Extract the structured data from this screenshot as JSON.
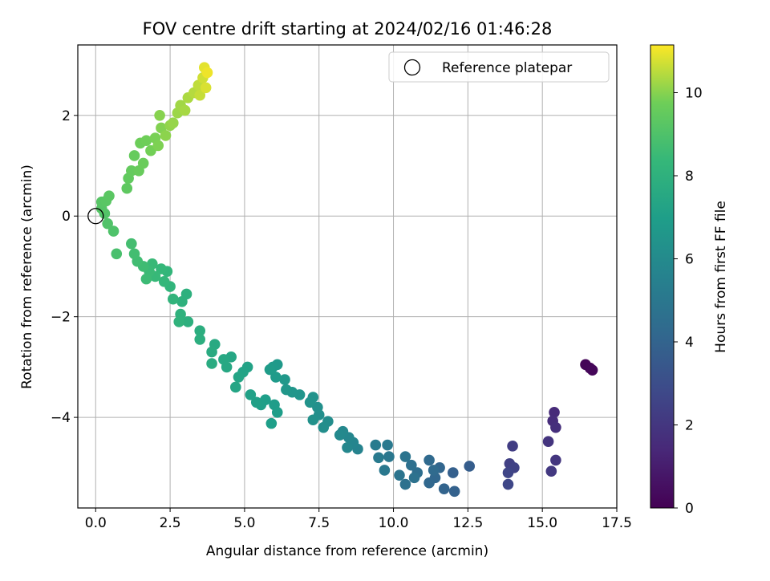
{
  "chart_data": {
    "type": "scatter",
    "title": "FOV centre drift starting at 2024/02/16 01:46:28",
    "xlabel": "Angular distance from reference (arcmin)",
    "ylabel": "Rotation from reference (arcmin)",
    "xlim": [
      -0.6,
      17.5
    ],
    "ylim": [
      -5.8,
      3.4
    ],
    "xticks": [
      0.0,
      2.5,
      5.0,
      7.5,
      10.0,
      12.5,
      15.0,
      17.5
    ],
    "xtick_labels": [
      "0.0",
      "2.5",
      "5.0",
      "7.5",
      "10.0",
      "12.5",
      "15.0",
      "17.5"
    ],
    "yticks": [
      -4,
      -2,
      0,
      2
    ],
    "ytick_labels": [
      "−4",
      "−2",
      "0",
      "2"
    ],
    "grid": true,
    "legend": {
      "position": "top-right",
      "entries": [
        {
          "label": "Reference platepar",
          "marker": "open-circle"
        }
      ]
    },
    "reference_point": {
      "x": 0,
      "y": 0
    },
    "colorbar": {
      "label": "Hours from first FF file",
      "colormap": "viridis",
      "range": [
        0,
        11.15
      ],
      "ticks": [
        0,
        2,
        4,
        6,
        8,
        10
      ],
      "tick_labels": [
        "0",
        "2",
        "4",
        "6",
        "8",
        "10"
      ]
    },
    "points": [
      {
        "x": 16.45,
        "y": -2.95,
        "c": 0.1
      },
      {
        "x": 16.6,
        "y": -3.02,
        "c": 0.15
      },
      {
        "x": 16.68,
        "y": -3.06,
        "c": 0.2
      },
      {
        "x": 15.4,
        "y": -3.9,
        "c": 1.5
      },
      {
        "x": 15.35,
        "y": -4.07,
        "c": 1.6
      },
      {
        "x": 15.45,
        "y": -4.2,
        "c": 1.7
      },
      {
        "x": 15.2,
        "y": -4.48,
        "c": 1.9
      },
      {
        "x": 15.45,
        "y": -4.85,
        "c": 2.0
      },
      {
        "x": 15.3,
        "y": -5.07,
        "c": 2.1
      },
      {
        "x": 14.0,
        "y": -4.57,
        "c": 2.3
      },
      {
        "x": 13.9,
        "y": -4.92,
        "c": 2.4
      },
      {
        "x": 14.05,
        "y": -5.0,
        "c": 2.5
      },
      {
        "x": 13.85,
        "y": -5.1,
        "c": 2.6
      },
      {
        "x": 13.85,
        "y": -5.33,
        "c": 2.7
      },
      {
        "x": 12.55,
        "y": -4.97,
        "c": 3.7
      },
      {
        "x": 12.0,
        "y": -5.1,
        "c": 3.8
      },
      {
        "x": 12.05,
        "y": -5.47,
        "c": 3.9
      },
      {
        "x": 11.7,
        "y": -5.42,
        "c": 4.0
      },
      {
        "x": 11.55,
        "y": -5.0,
        "c": 4.1
      },
      {
        "x": 11.4,
        "y": -5.2,
        "c": 4.15
      },
      {
        "x": 11.2,
        "y": -5.3,
        "c": 4.2
      },
      {
        "x": 11.2,
        "y": -4.85,
        "c": 4.3
      },
      {
        "x": 11.35,
        "y": -5.05,
        "c": 4.35
      },
      {
        "x": 10.8,
        "y": -5.1,
        "c": 4.5
      },
      {
        "x": 10.6,
        "y": -4.95,
        "c": 4.6
      },
      {
        "x": 10.4,
        "y": -5.33,
        "c": 4.65
      },
      {
        "x": 10.7,
        "y": -5.2,
        "c": 4.7
      },
      {
        "x": 10.4,
        "y": -4.78,
        "c": 4.8
      },
      {
        "x": 10.2,
        "y": -5.15,
        "c": 4.85
      },
      {
        "x": 9.85,
        "y": -4.78,
        "c": 5.0
      },
      {
        "x": 9.7,
        "y": -5.05,
        "c": 5.05
      },
      {
        "x": 9.8,
        "y": -4.55,
        "c": 5.1
      },
      {
        "x": 9.5,
        "y": -4.8,
        "c": 5.15
      },
      {
        "x": 9.4,
        "y": -4.55,
        "c": 5.2
      },
      {
        "x": 8.8,
        "y": -4.63,
        "c": 5.6
      },
      {
        "x": 8.65,
        "y": -4.5,
        "c": 5.7
      },
      {
        "x": 8.5,
        "y": -4.4,
        "c": 5.75
      },
      {
        "x": 8.45,
        "y": -4.6,
        "c": 5.8
      },
      {
        "x": 8.3,
        "y": -4.28,
        "c": 5.85
      },
      {
        "x": 8.2,
        "y": -4.35,
        "c": 5.9
      },
      {
        "x": 7.8,
        "y": -4.08,
        "c": 6.1
      },
      {
        "x": 7.65,
        "y": -4.2,
        "c": 6.15
      },
      {
        "x": 7.5,
        "y": -3.95,
        "c": 6.2
      },
      {
        "x": 7.45,
        "y": -3.8,
        "c": 6.25
      },
      {
        "x": 7.3,
        "y": -4.05,
        "c": 6.3
      },
      {
        "x": 7.3,
        "y": -3.6,
        "c": 6.35
      },
      {
        "x": 7.2,
        "y": -3.7,
        "c": 6.4
      },
      {
        "x": 6.85,
        "y": -3.55,
        "c": 6.5
      },
      {
        "x": 6.6,
        "y": -3.5,
        "c": 6.55
      },
      {
        "x": 6.4,
        "y": -3.45,
        "c": 6.6
      },
      {
        "x": 6.35,
        "y": -3.25,
        "c": 6.65
      },
      {
        "x": 6.1,
        "y": -2.95,
        "c": 6.7
      },
      {
        "x": 5.95,
        "y": -3.0,
        "c": 6.75
      },
      {
        "x": 6.05,
        "y": -3.2,
        "c": 6.8
      },
      {
        "x": 5.85,
        "y": -3.05,
        "c": 6.85
      },
      {
        "x": 6.0,
        "y": -3.75,
        "c": 6.9
      },
      {
        "x": 6.1,
        "y": -3.9,
        "c": 6.95
      },
      {
        "x": 5.9,
        "y": -4.12,
        "c": 7.0
      },
      {
        "x": 5.7,
        "y": -3.65,
        "c": 7.0
      },
      {
        "x": 5.55,
        "y": -3.75,
        "c": 7.05
      },
      {
        "x": 5.4,
        "y": -3.7,
        "c": 7.1
      },
      {
        "x": 5.2,
        "y": -3.55,
        "c": 7.15
      },
      {
        "x": 5.1,
        "y": -3.0,
        "c": 7.2
      },
      {
        "x": 4.95,
        "y": -3.1,
        "c": 7.25
      },
      {
        "x": 4.8,
        "y": -3.2,
        "c": 7.3
      },
      {
        "x": 4.7,
        "y": -3.4,
        "c": 7.35
      },
      {
        "x": 4.55,
        "y": -2.8,
        "c": 7.4
      },
      {
        "x": 4.4,
        "y": -3.0,
        "c": 7.45
      },
      {
        "x": 4.3,
        "y": -2.85,
        "c": 7.5
      },
      {
        "x": 4.0,
        "y": -2.55,
        "c": 7.6
      },
      {
        "x": 3.9,
        "y": -2.7,
        "c": 7.65
      },
      {
        "x": 3.9,
        "y": -2.93,
        "c": 7.7
      },
      {
        "x": 3.5,
        "y": -2.28,
        "c": 7.8
      },
      {
        "x": 3.5,
        "y": -2.45,
        "c": 7.85
      },
      {
        "x": 3.1,
        "y": -2.1,
        "c": 7.9
      },
      {
        "x": 3.05,
        "y": -1.55,
        "c": 7.95
      },
      {
        "x": 2.9,
        "y": -1.7,
        "c": 8.0
      },
      {
        "x": 2.85,
        "y": -1.95,
        "c": 8.05
      },
      {
        "x": 2.8,
        "y": -2.1,
        "c": 8.1
      },
      {
        "x": 2.6,
        "y": -1.65,
        "c": 8.15
      },
      {
        "x": 2.5,
        "y": -1.4,
        "c": 8.2
      },
      {
        "x": 2.4,
        "y": -1.1,
        "c": 8.25
      },
      {
        "x": 2.3,
        "y": -1.3,
        "c": 8.3
      },
      {
        "x": 2.2,
        "y": -1.05,
        "c": 8.35
      },
      {
        "x": 2.0,
        "y": -1.2,
        "c": 8.4
      },
      {
        "x": 1.9,
        "y": -0.95,
        "c": 8.45
      },
      {
        "x": 1.8,
        "y": -1.1,
        "c": 8.5
      },
      {
        "x": 1.7,
        "y": -1.25,
        "c": 8.55
      },
      {
        "x": 1.6,
        "y": -1.0,
        "c": 8.6
      },
      {
        "x": 1.4,
        "y": -0.9,
        "c": 8.65
      },
      {
        "x": 1.3,
        "y": -0.75,
        "c": 8.7
      },
      {
        "x": 1.2,
        "y": -0.55,
        "c": 8.75
      },
      {
        "x": 0.7,
        "y": -0.75,
        "c": 8.85
      },
      {
        "x": 0.6,
        "y": -0.3,
        "c": 9.0
      },
      {
        "x": 0.4,
        "y": -0.15,
        "c": 9.05
      },
      {
        "x": 0.3,
        "y": 0.05,
        "c": 9.1
      },
      {
        "x": 0.2,
        "y": 0.15,
        "c": 9.15
      },
      {
        "x": 0.2,
        "y": 0.28,
        "c": 9.2
      },
      {
        "x": 0.35,
        "y": 0.3,
        "c": 9.25
      },
      {
        "x": 0.45,
        "y": 0.4,
        "c": 9.3
      },
      {
        "x": 1.05,
        "y": 0.55,
        "c": 9.4
      },
      {
        "x": 1.1,
        "y": 0.75,
        "c": 9.45
      },
      {
        "x": 1.2,
        "y": 0.9,
        "c": 9.5
      },
      {
        "x": 1.3,
        "y": 1.2,
        "c": 9.55
      },
      {
        "x": 1.45,
        "y": 0.9,
        "c": 9.6
      },
      {
        "x": 1.6,
        "y": 1.05,
        "c": 9.65
      },
      {
        "x": 1.5,
        "y": 1.45,
        "c": 9.7
      },
      {
        "x": 1.7,
        "y": 1.5,
        "c": 9.75
      },
      {
        "x": 1.85,
        "y": 1.3,
        "c": 9.8
      },
      {
        "x": 2.0,
        "y": 1.55,
        "c": 9.85
      },
      {
        "x": 2.1,
        "y": 1.4,
        "c": 9.9
      },
      {
        "x": 2.2,
        "y": 1.75,
        "c": 9.95
      },
      {
        "x": 2.15,
        "y": 2.0,
        "c": 10.0
      },
      {
        "x": 2.35,
        "y": 1.6,
        "c": 10.05
      },
      {
        "x": 2.5,
        "y": 1.8,
        "c": 10.1
      },
      {
        "x": 2.6,
        "y": 1.85,
        "c": 10.15
      },
      {
        "x": 2.75,
        "y": 2.05,
        "c": 10.2
      },
      {
        "x": 2.85,
        "y": 2.2,
        "c": 10.25
      },
      {
        "x": 3.0,
        "y": 2.1,
        "c": 10.3
      },
      {
        "x": 3.1,
        "y": 2.35,
        "c": 10.35
      },
      {
        "x": 3.3,
        "y": 2.45,
        "c": 10.45
      },
      {
        "x": 3.45,
        "y": 2.6,
        "c": 10.55
      },
      {
        "x": 3.5,
        "y": 2.4,
        "c": 10.6
      },
      {
        "x": 3.6,
        "y": 2.75,
        "c": 10.7
      },
      {
        "x": 3.7,
        "y": 2.55,
        "c": 10.8
      },
      {
        "x": 3.65,
        "y": 2.95,
        "c": 10.9
      },
      {
        "x": 3.75,
        "y": 2.85,
        "c": 11.0
      }
    ]
  }
}
